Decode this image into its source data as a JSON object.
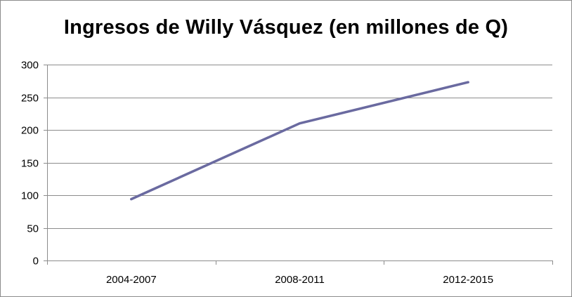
{
  "chart_data": {
    "type": "line",
    "title": "Ingresos de Willy Vásquez (en millones de Q)",
    "xlabel": "",
    "ylabel": "",
    "categories": [
      "2004-2007",
      "2008-2011",
      "2012-2015"
    ],
    "series": [
      {
        "values": [
          94,
          210,
          273
        ],
        "color": "#6A6AA0"
      }
    ],
    "ylim": [
      0,
      300
    ],
    "yticks": [
      0,
      50,
      100,
      150,
      200,
      250,
      300
    ],
    "grid": true,
    "legend": "none"
  }
}
